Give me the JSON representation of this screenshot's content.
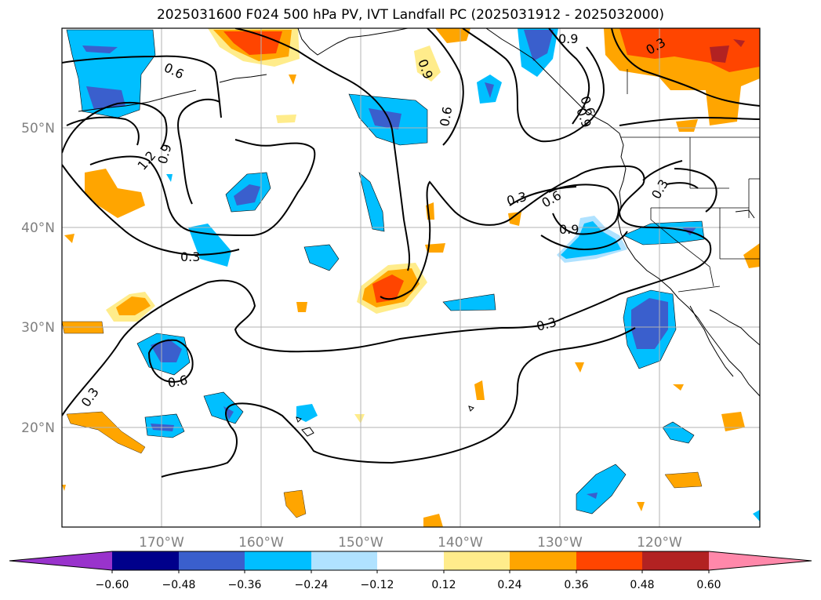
{
  "title": "2025031600 F024 500 hPa PV, IVT Landfall PC (2025031912 - 2025032000)",
  "lat_labels": [
    "50°N",
    "40°N",
    "30°N",
    "20°N"
  ],
  "lon_labels": [
    "170°W",
    "160°W",
    "150°W",
    "140°W",
    "130°W",
    "120°W"
  ],
  "colorbar": {
    "ticks": [
      "−0.60",
      "−0.48",
      "−0.36",
      "−0.24",
      "−0.12",
      "0.12",
      "0.24",
      "0.36",
      "0.48",
      "0.60"
    ],
    "colors": [
      "#9933cc",
      "#00008b",
      "#3a5fcd",
      "#00bfff",
      "#b0e2ff",
      "#ffffff",
      "#ffec8b",
      "#ffa500",
      "#ff4500",
      "#b22222",
      "#ff88aa"
    ]
  },
  "contour_labels": [
    "0.6",
    "1.2",
    "0.9",
    "0.3",
    "0.6",
    "0.9",
    "0.6",
    "0.9",
    "0.3",
    "0.3",
    "0.6",
    "0.9",
    "0.3",
    "0.3",
    "0.6",
    "0.3",
    "0.9"
  ]
}
